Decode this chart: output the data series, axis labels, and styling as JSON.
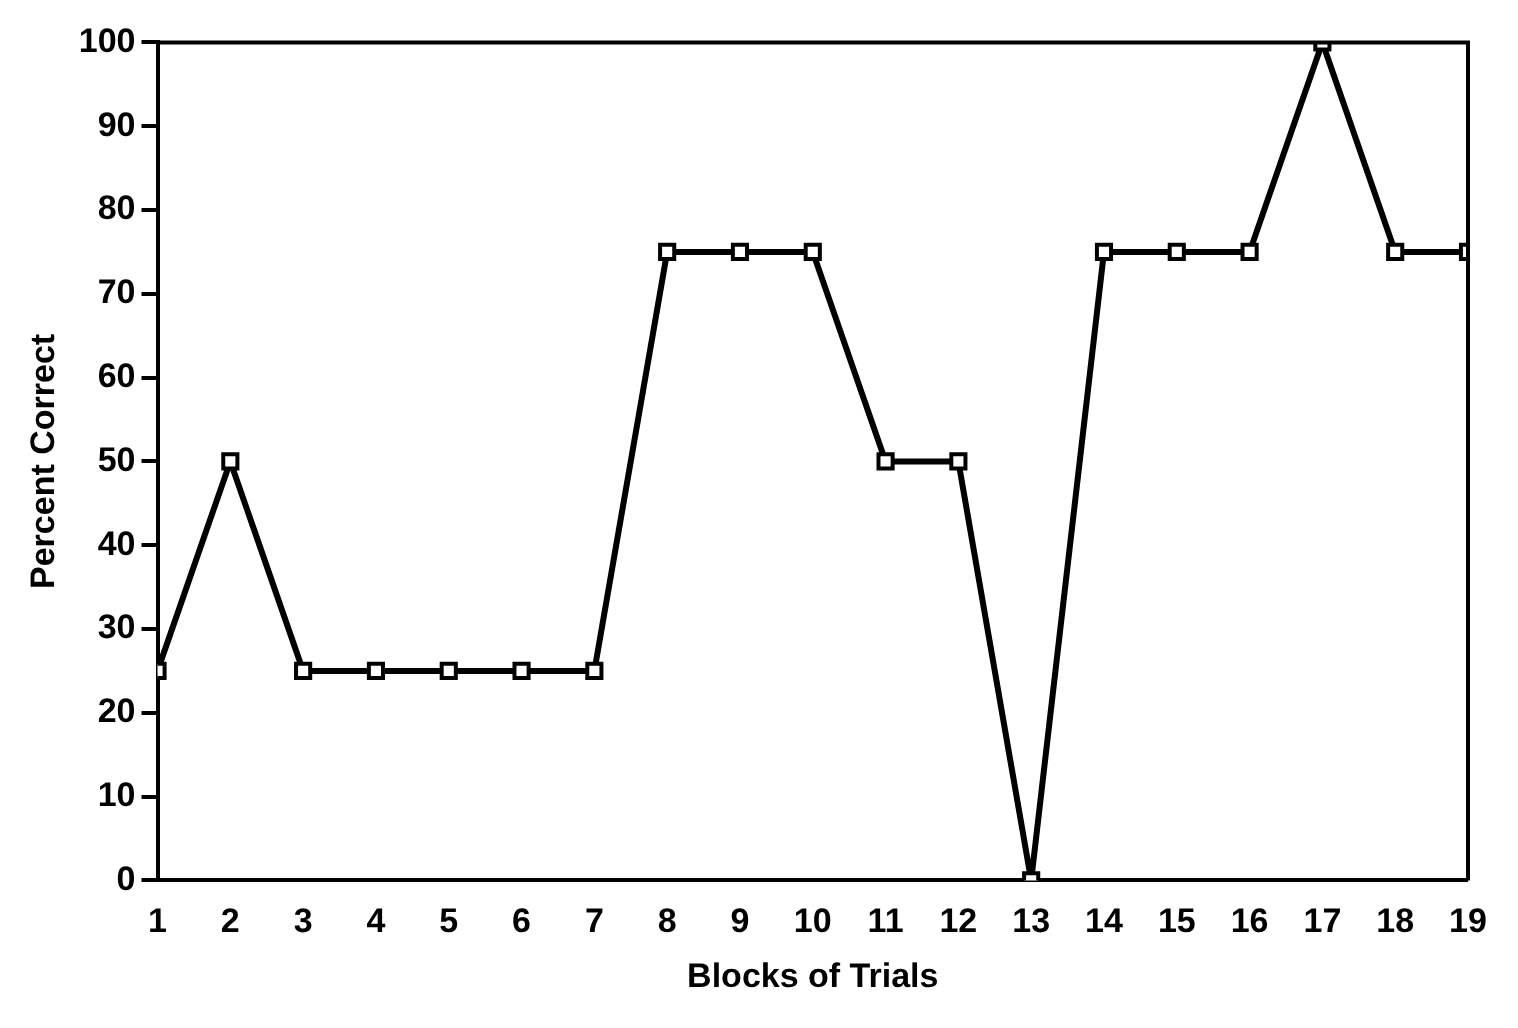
{
  "chart_data": {
    "type": "line",
    "xlabel": "Blocks of Trials",
    "ylabel": "Percent Correct",
    "x": [
      1,
      2,
      3,
      4,
      5,
      6,
      7,
      8,
      9,
      10,
      11,
      12,
      13,
      14,
      15,
      16,
      17,
      18,
      19
    ],
    "series": [
      {
        "color": "#000000",
        "values": [
          25,
          50,
          25,
          25,
          25,
          25,
          25,
          75,
          75,
          75,
          50,
          50,
          0,
          75,
          75,
          75,
          100,
          75,
          75
        ]
      }
    ],
    "xlim": [
      1,
      19
    ],
    "xticks": [
      1,
      2,
      3,
      4,
      5,
      6,
      7,
      8,
      9,
      10,
      11,
      12,
      13,
      14,
      15,
      16,
      17,
      18,
      19
    ],
    "ylim": [
      0,
      100
    ],
    "yticks": [
      0,
      10,
      20,
      30,
      40,
      50,
      60,
      70,
      80,
      90,
      100
    ],
    "grid": false,
    "legend": false,
    "marker": "square",
    "line_style": "solid"
  }
}
